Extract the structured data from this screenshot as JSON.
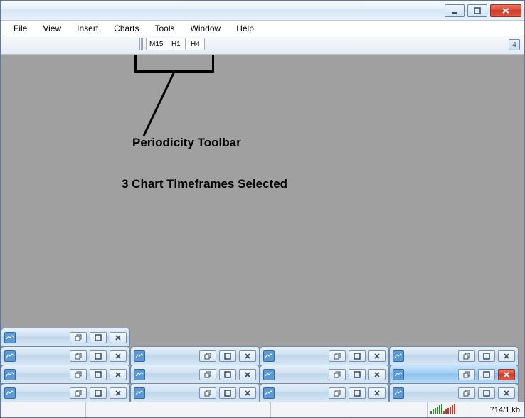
{
  "colors": {
    "window_border": "#5a7aa0",
    "workspace_bg": "#a0a0a0",
    "close_red": "#c83a28",
    "annotation": "#000000"
  },
  "titlebar": {},
  "menu": {
    "items": [
      "File",
      "View",
      "Insert",
      "Charts",
      "Tools",
      "Window",
      "Help"
    ]
  },
  "toolbar": {
    "timeframes": [
      "M15",
      "H1",
      "H4"
    ],
    "badge": "4"
  },
  "annotation": {
    "label1": "Periodicity Toolbar",
    "label2": "3 Chart Timeframes Selected"
  },
  "mdi": {
    "rows": [
      {
        "count": 1,
        "active_index": -1
      },
      {
        "count": 4,
        "active_index": -1
      },
      {
        "count": 4,
        "active_index": 3
      },
      {
        "count": 4,
        "active_index": -1
      }
    ]
  },
  "statusbar": {
    "net": "714/1 kb"
  }
}
